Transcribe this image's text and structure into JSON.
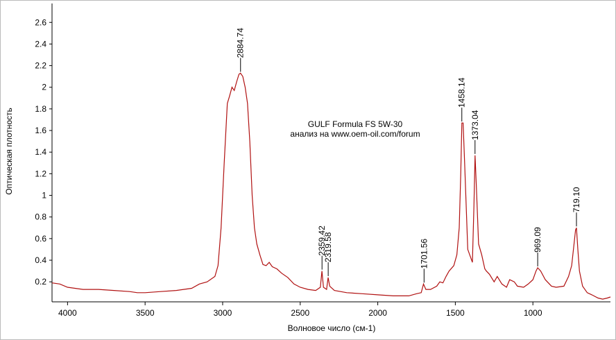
{
  "chart_data": {
    "type": "line",
    "title": "GULF Formula FS 5W-30",
    "subtitle": "анализ на www.oem-oil.com/forum",
    "x_label": "Волновое число (см-1)",
    "y_label": "Оптическая плотность",
    "color": "#b01010",
    "xlim": [
      4100,
      500
    ],
    "ylim": [
      0.015,
      2.775
    ],
    "xticks": [
      4000,
      3500,
      3000,
      2500,
      2000,
      1500,
      1000
    ],
    "yticks": [
      0.2,
      0.4,
      0.6,
      0.8,
      1.0,
      1.2,
      1.4,
      1.6,
      1.8,
      2.0,
      2.2,
      2.4,
      2.6
    ],
    "x": [
      4100,
      4050,
      4000,
      3900,
      3800,
      3700,
      3600,
      3550,
      3500,
      3400,
      3300,
      3200,
      3150,
      3100,
      3050,
      3030,
      3010,
      2990,
      2970,
      2955,
      2940,
      2925,
      2910,
      2895,
      2885,
      2870,
      2855,
      2840,
      2825,
      2810,
      2795,
      2780,
      2760,
      2740,
      2720,
      2700,
      2680,
      2650,
      2620,
      2580,
      2540,
      2500,
      2450,
      2400,
      2370,
      2360,
      2350,
      2330,
      2320,
      2310,
      2280,
      2200,
      2100,
      2000,
      1900,
      1800,
      1750,
      1720,
      1705,
      1690,
      1660,
      1620,
      1600,
      1580,
      1560,
      1540,
      1510,
      1490,
      1475,
      1465,
      1458,
      1450,
      1440,
      1420,
      1400,
      1390,
      1380,
      1373,
      1365,
      1350,
      1330,
      1310,
      1300,
      1280,
      1250,
      1230,
      1200,
      1170,
      1150,
      1120,
      1100,
      1060,
      1030,
      1000,
      980,
      969,
      950,
      920,
      880,
      850,
      800,
      770,
      750,
      735,
      725,
      719,
      710,
      700,
      680,
      650,
      620,
      580,
      550,
      520,
      500
    ],
    "values": [
      0.19,
      0.18,
      0.15,
      0.13,
      0.13,
      0.12,
      0.11,
      0.1,
      0.1,
      0.11,
      0.12,
      0.14,
      0.18,
      0.2,
      0.25,
      0.35,
      0.7,
      1.3,
      1.85,
      1.92,
      2.0,
      1.97,
      2.05,
      2.12,
      2.13,
      2.1,
      2.0,
      1.85,
      1.5,
      1.0,
      0.7,
      0.55,
      0.45,
      0.36,
      0.35,
      0.38,
      0.34,
      0.32,
      0.28,
      0.24,
      0.18,
      0.15,
      0.13,
      0.12,
      0.15,
      0.3,
      0.15,
      0.13,
      0.24,
      0.16,
      0.12,
      0.1,
      0.09,
      0.08,
      0.07,
      0.07,
      0.09,
      0.1,
      0.18,
      0.13,
      0.13,
      0.16,
      0.2,
      0.19,
      0.25,
      0.3,
      0.35,
      0.45,
      0.7,
      1.2,
      1.67,
      1.67,
      1.3,
      0.5,
      0.42,
      0.38,
      0.9,
      1.37,
      1.1,
      0.55,
      0.45,
      0.32,
      0.3,
      0.27,
      0.2,
      0.25,
      0.18,
      0.15,
      0.22,
      0.2,
      0.16,
      0.15,
      0.18,
      0.22,
      0.3,
      0.33,
      0.3,
      0.22,
      0.16,
      0.15,
      0.16,
      0.25,
      0.35,
      0.55,
      0.68,
      0.7,
      0.5,
      0.3,
      0.16,
      0.1,
      0.08,
      0.05,
      0.04,
      0.05,
      0.06
    ],
    "annotations": [
      {
        "x": 2884.74,
        "y": 2.13
      },
      {
        "x": 2359.42,
        "y": 0.3
      },
      {
        "x": 2319.58,
        "y": 0.24
      },
      {
        "x": 1701.56,
        "y": 0.18
      },
      {
        "x": 1458.14,
        "y": 1.67
      },
      {
        "x": 1373.04,
        "y": 1.37
      },
      {
        "x": 969.09,
        "y": 0.33
      },
      {
        "x": 719.1,
        "y": 0.7,
        "label": "719.10"
      }
    ]
  }
}
